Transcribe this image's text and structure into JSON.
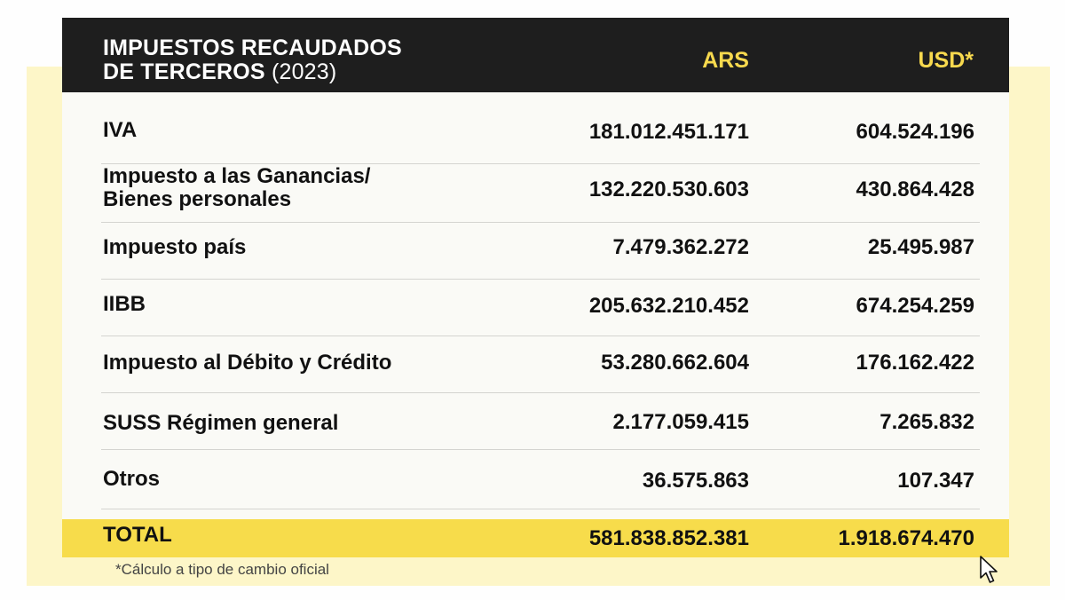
{
  "header": {
    "title_line1": "IMPUESTOS RECAUDADOS",
    "title_line2": "DE TERCEROS",
    "title_year": "(2023)",
    "col_ars": "ARS",
    "col_usd": "USD*"
  },
  "rows": [
    {
      "label_line1": "IVA",
      "label_line2": "",
      "ars": "181.012.451.171",
      "usd": "604.524.196"
    },
    {
      "label_line1": "Impuesto a las Ganancias/",
      "label_line2": "Bienes personales",
      "ars": "132.220.530.603",
      "usd": "430.864.428"
    },
    {
      "label_line1": "Impuesto país",
      "label_line2": "",
      "ars": "7.479.362.272",
      "usd": "25.495.987"
    },
    {
      "label_line1": "IIBB",
      "label_line2": "",
      "ars": "205.632.210.452",
      "usd": "674.254.259"
    },
    {
      "label_line1": "Impuesto al Débito y Crédito",
      "label_line2": "",
      "ars": "53.280.662.604",
      "usd": "176.162.422"
    },
    {
      "label_line1": "SUSS Régimen general",
      "label_line2": "",
      "ars": "2.177.059.415",
      "usd": "7.265.832"
    },
    {
      "label_line1": "Otros",
      "label_line2": "",
      "ars": "36.575.863",
      "usd": "107.347"
    }
  ],
  "total": {
    "label": "TOTAL",
    "ars": "581.838.852.381",
    "usd": "1.918.674.470"
  },
  "footnote": "*Cálculo a tipo de cambio oficial",
  "colors": {
    "header_bg": "#1e1e1e",
    "header_accent": "#f7d94e",
    "total_bg": "#f7dc4b",
    "frame_bg": "#fdf6c8"
  },
  "icons": {
    "cursor": "mouse-pointer-icon"
  }
}
